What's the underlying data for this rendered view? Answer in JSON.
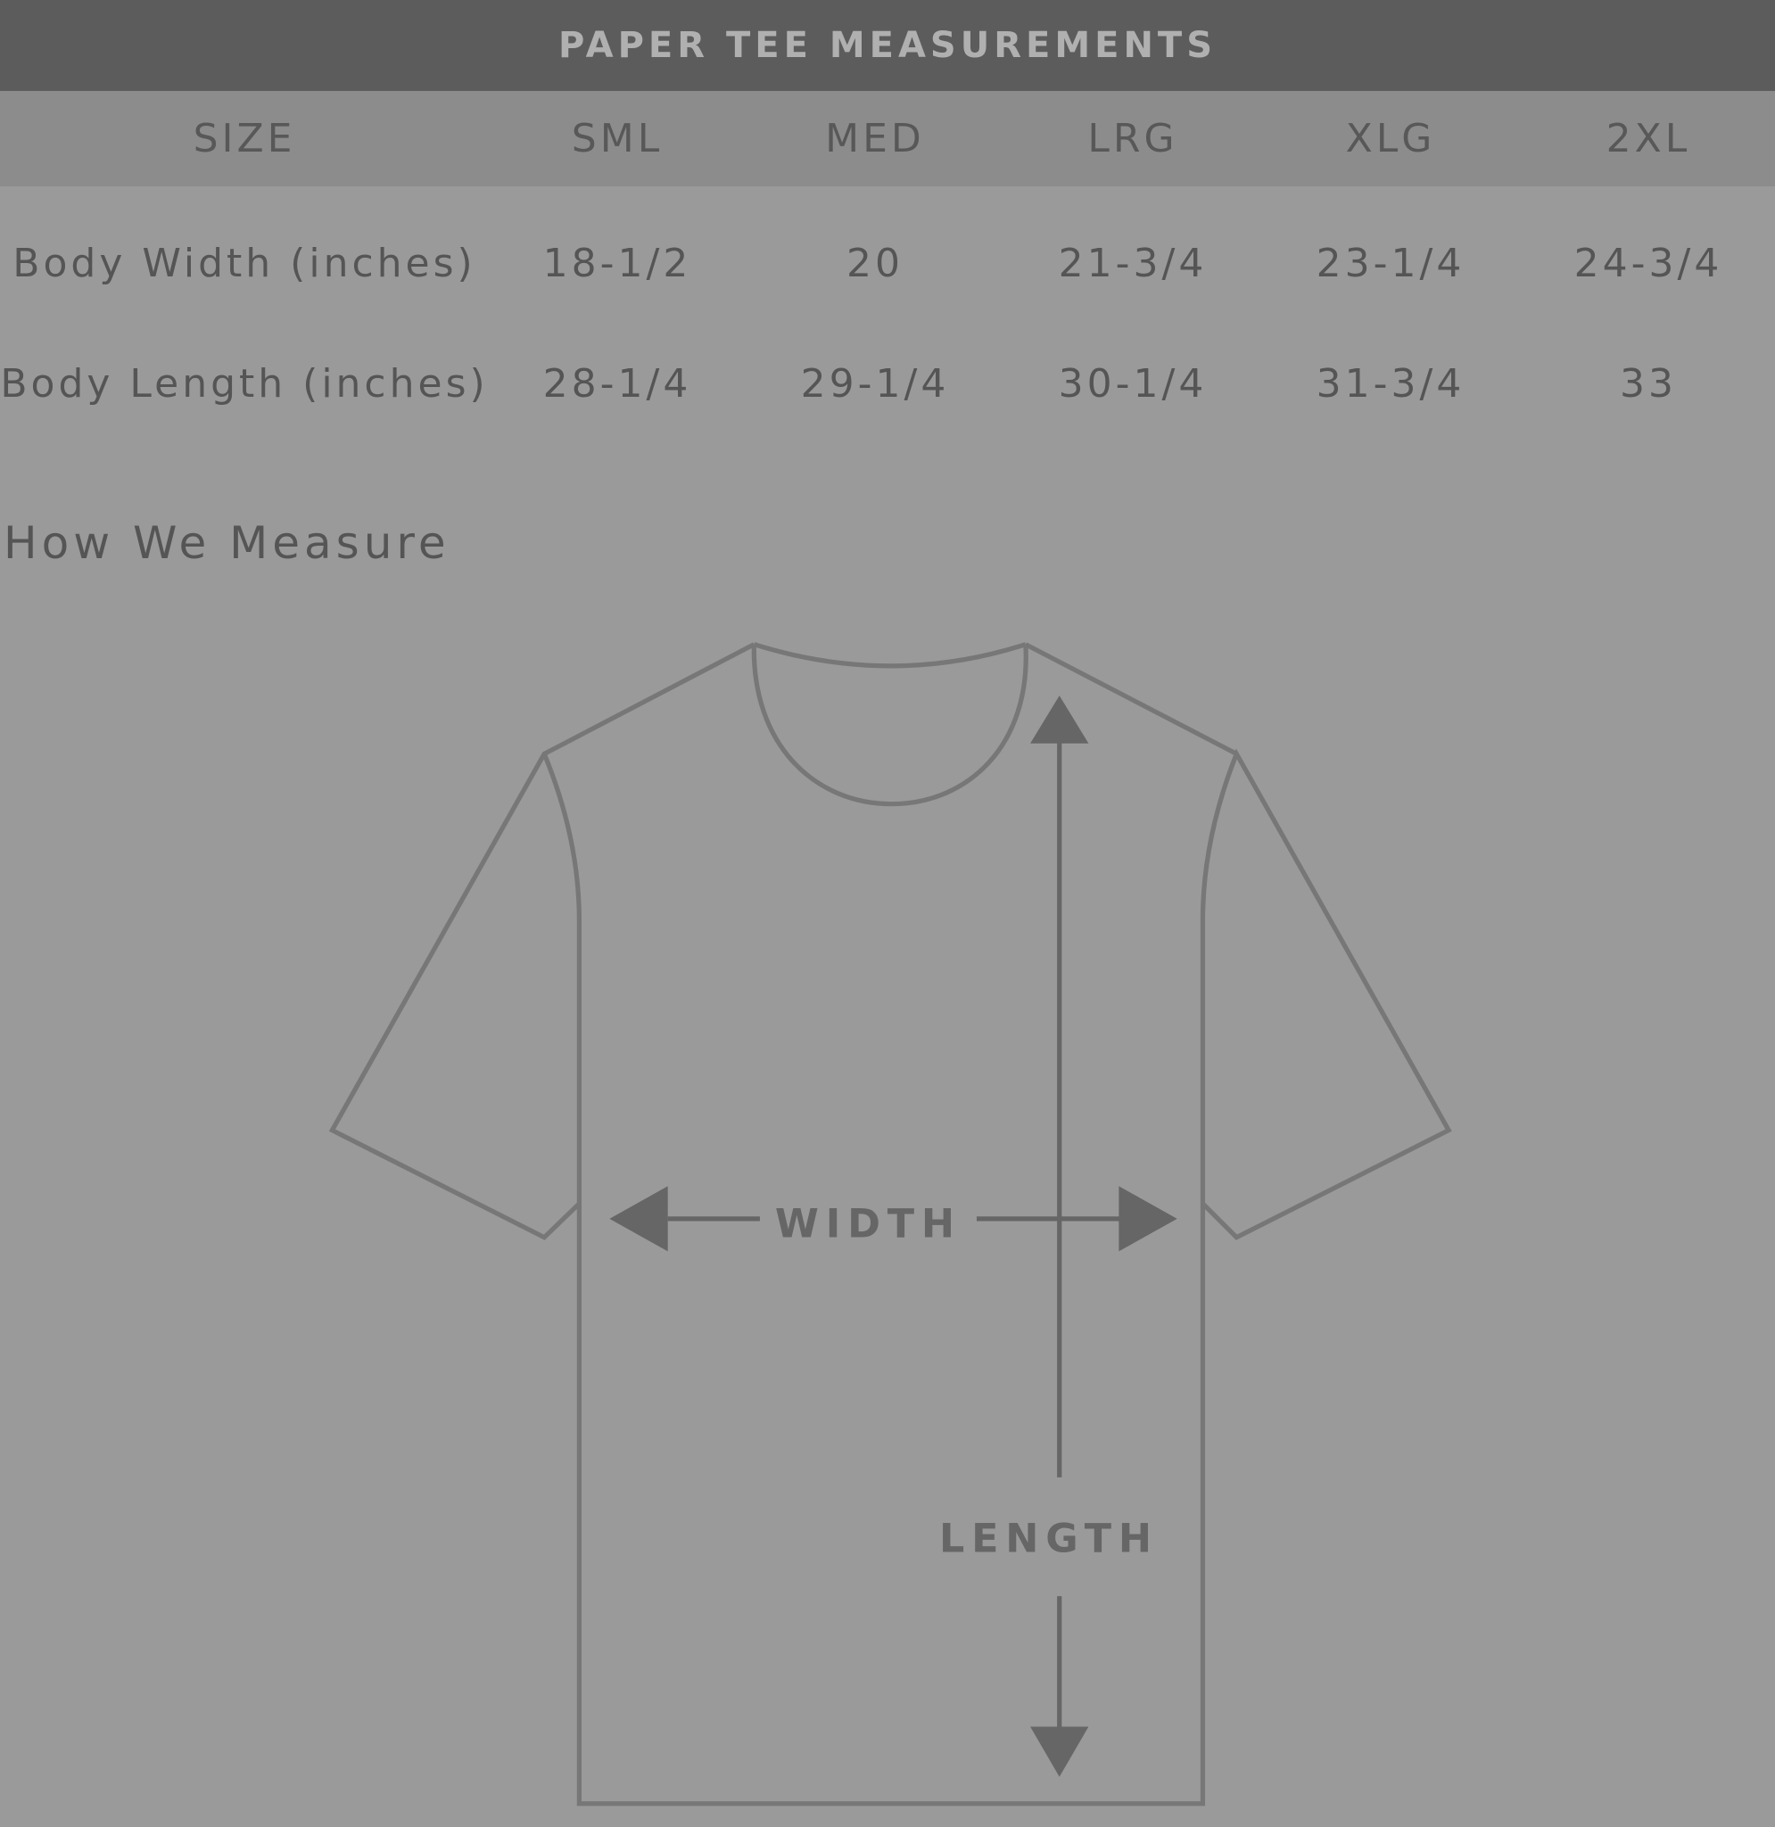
{
  "title": "PAPER TEE MEASUREMENTS",
  "table": {
    "headers": [
      "SIZE",
      "SML",
      "MED",
      "LRG",
      "XLG",
      "2XL"
    ],
    "rows": [
      {
        "label": "Body Width (inches)",
        "values": [
          "18-1/2",
          "20",
          "21-3/4",
          "23-1/4",
          "24-3/4"
        ]
      },
      {
        "label": "Body Length (inches)",
        "values": [
          "28-1/4",
          "29-1/4",
          "30-1/4",
          "31-3/4",
          "33"
        ]
      }
    ]
  },
  "diagram": {
    "heading": "How We Measure",
    "width_label": "WIDTH",
    "length_label": "LENGTH"
  },
  "colors": {
    "background": "#9a9a9a",
    "title_bar": "#5c5c5c",
    "size_bar": "#8c8c8c",
    "outline": "#777777",
    "arrow": "#666666"
  }
}
